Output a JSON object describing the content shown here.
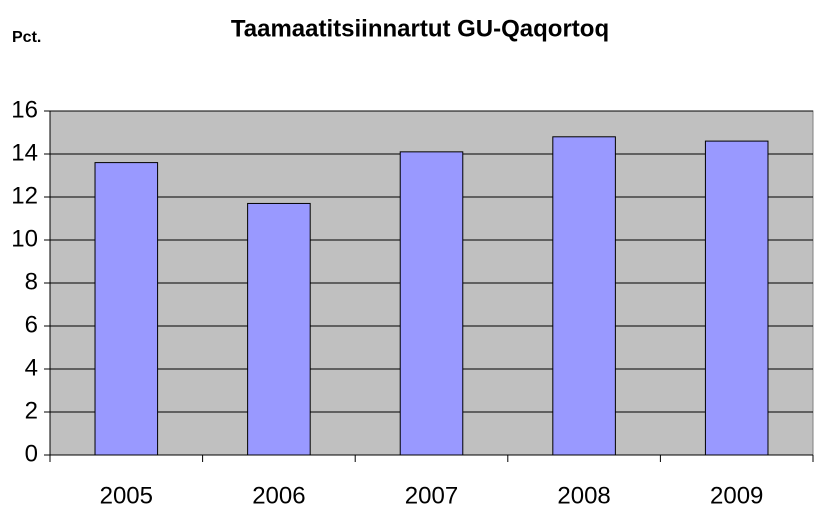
{
  "chart_data": {
    "type": "bar",
    "title": "Taamaatitsiinnartut GU-Qaqortoq",
    "y_label": "Pct.",
    "categories": [
      "2005",
      "2006",
      "2007",
      "2008",
      "2009"
    ],
    "values": [
      13.6,
      11.7,
      14.1,
      14.8,
      14.6
    ],
    "color": "#9999ff",
    "ylim": [
      0,
      16
    ],
    "yticks": [
      0,
      2,
      4,
      6,
      8,
      10,
      12,
      14,
      16
    ],
    "grid": true
  }
}
